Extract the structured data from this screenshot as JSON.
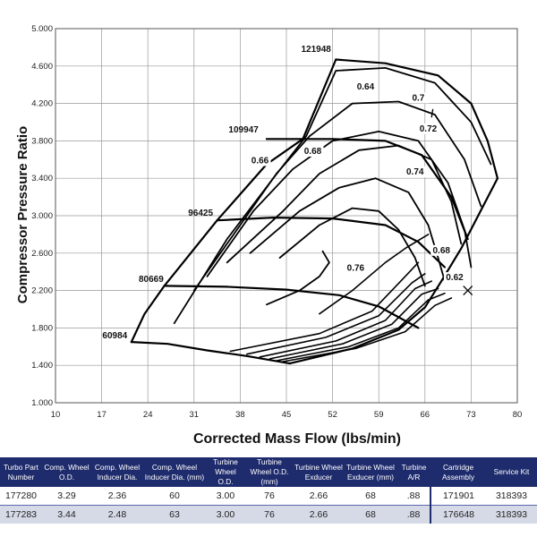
{
  "chart_data": {
    "type": "line",
    "title": "",
    "xlabel": "Corrected Mass Flow (lbs/min)",
    "ylabel": "Compressor Pressure Ratio",
    "xlim": [
      10,
      80
    ],
    "ylim": [
      1.0,
      5.0
    ],
    "x_ticks": [
      "10",
      "17",
      "24",
      "31",
      "38",
      "45",
      "52",
      "59",
      "66",
      "73",
      "80"
    ],
    "y_ticks": [
      "1.000",
      "1.400",
      "1.800",
      "2.200",
      "2.600",
      "3.000",
      "3.400",
      "3.800",
      "4.200",
      "4.600",
      "5.000"
    ],
    "grid": true,
    "surge_line": [
      [
        21.5,
        1.65
      ],
      [
        23.5,
        1.95
      ],
      [
        26.5,
        2.25
      ],
      [
        34.5,
        2.95
      ],
      [
        42,
        3.55
      ],
      [
        47.5,
        3.82
      ],
      [
        52.5,
        4.67
      ]
    ],
    "speed_lines": [
      {
        "name": "60984",
        "points": [
          [
            21.5,
            1.65
          ],
          [
            27,
            1.63
          ],
          [
            33,
            1.56
          ],
          [
            39,
            1.5
          ],
          [
            45.5,
            1.42
          ]
        ]
      },
      {
        "name": "80669",
        "points": [
          [
            26.5,
            2.25
          ],
          [
            36,
            2.24
          ],
          [
            45,
            2.21
          ],
          [
            53,
            2.15
          ],
          [
            59,
            2.03
          ],
          [
            65,
            1.8
          ]
        ]
      },
      {
        "name": "96425",
        "points": [
          [
            34.5,
            2.95
          ],
          [
            43,
            2.98
          ],
          [
            52,
            2.97
          ],
          [
            60,
            2.9
          ],
          [
            65,
            2.72
          ],
          [
            69,
            2.45
          ]
        ]
      },
      {
        "name": "109947",
        "points": [
          [
            42,
            3.82
          ],
          [
            52,
            3.82
          ],
          [
            60,
            3.8
          ],
          [
            65.5,
            3.65
          ],
          [
            70,
            3.2
          ],
          [
            72.5,
            2.75
          ]
        ]
      },
      {
        "name": "121948",
        "points": [
          [
            52.5,
            4.67
          ],
          [
            60,
            4.63
          ],
          [
            68,
            4.5
          ],
          [
            73,
            4.2
          ],
          [
            75.5,
            3.8
          ],
          [
            77,
            3.4
          ]
        ]
      }
    ],
    "choke_line": [
      [
        77,
        3.4
      ],
      [
        71.5,
        2.65
      ],
      [
        68.5,
        2.3
      ],
      [
        66,
        2.02
      ],
      [
        62,
        1.78
      ],
      [
        55,
        1.58
      ],
      [
        45.5,
        1.42
      ]
    ],
    "efficiency_islands": [
      {
        "label": "0.64",
        "points": [
          [
            28,
            1.85
          ],
          [
            36,
            2.75
          ],
          [
            43,
            3.4
          ],
          [
            48,
            3.85
          ],
          [
            52.5,
            4.55
          ],
          [
            60,
            4.58
          ],
          [
            67.5,
            4.42
          ],
          [
            73,
            4.0
          ],
          [
            76,
            3.55
          ]
        ]
      },
      {
        "label": "0.66",
        "points": [
          [
            31,
            2.2
          ],
          [
            38,
            2.9
          ],
          [
            43.5,
            3.45
          ],
          [
            48.5,
            3.85
          ],
          [
            55,
            4.2
          ],
          [
            62,
            4.22
          ],
          [
            67.5,
            4.08
          ],
          [
            72,
            3.6
          ],
          [
            74.5,
            3.1
          ]
        ]
      },
      {
        "label": "0.68",
        "points": [
          [
            33,
            2.35
          ],
          [
            40,
            3.05
          ],
          [
            46,
            3.5
          ],
          [
            52,
            3.8
          ],
          [
            59,
            3.9
          ],
          [
            65,
            3.8
          ],
          [
            69.5,
            3.35
          ],
          [
            72,
            2.85
          ],
          [
            73,
            2.45
          ]
        ]
      },
      {
        "label": "0.7",
        "points": [
          [
            36,
            2.5
          ],
          [
            44.5,
            3.05
          ],
          [
            50,
            3.45
          ],
          [
            56,
            3.7
          ],
          [
            62,
            3.75
          ],
          [
            67,
            3.6
          ],
          [
            70,
            3.15
          ],
          [
            71.5,
            2.7
          ]
        ]
      },
      {
        "label": "0.72",
        "points": [
          [
            39.5,
            2.6
          ],
          [
            47,
            3.05
          ],
          [
            53,
            3.3
          ],
          [
            58.5,
            3.4
          ],
          [
            63.5,
            3.25
          ],
          [
            66.5,
            2.9
          ],
          [
            68,
            2.55
          ],
          [
            69,
            2.3
          ]
        ]
      },
      {
        "label": "0.74",
        "points": [
          [
            44,
            2.55
          ],
          [
            50,
            2.9
          ],
          [
            55,
            3.08
          ],
          [
            59,
            3.05
          ],
          [
            62,
            2.85
          ],
          [
            64.5,
            2.55
          ],
          [
            66,
            2.25
          ]
        ]
      },
      {
        "label": "0.76",
        "points": [
          [
            50.5,
            2.62
          ],
          [
            51.5,
            2.5
          ],
          [
            50,
            2.35
          ],
          [
            47,
            2.2
          ],
          [
            42,
            2.05
          ]
        ]
      }
    ],
    "choke_margin_lines": [
      [
        [
          36.5,
          1.55
        ],
        [
          50,
          1.74
        ],
        [
          58,
          1.98
        ],
        [
          63,
          2.35
        ],
        [
          65,
          2.5
        ]
      ],
      [
        [
          39,
          1.52
        ],
        [
          51,
          1.7
        ],
        [
          59,
          1.93
        ],
        [
          64,
          2.28
        ],
        [
          66,
          2.38
        ]
      ],
      [
        [
          41,
          1.49
        ],
        [
          52.5,
          1.66
        ],
        [
          60,
          1.88
        ],
        [
          64.5,
          2.22
        ],
        [
          67,
          2.3
        ]
      ],
      [
        [
          42.5,
          1.47
        ],
        [
          53.5,
          1.63
        ],
        [
          61,
          1.84
        ],
        [
          65.5,
          2.16
        ],
        [
          68,
          2.22
        ]
      ],
      [
        [
          43.5,
          1.45
        ],
        [
          54.5,
          1.6
        ],
        [
          62,
          1.8
        ],
        [
          66.5,
          2.1
        ],
        [
          69,
          2.17
        ]
      ],
      [
        [
          44.5,
          1.44
        ],
        [
          55.5,
          1.58
        ],
        [
          63,
          1.76
        ],
        [
          67.5,
          2.04
        ],
        [
          70,
          2.12
        ]
      ],
      [
        [
          50,
          1.95
        ],
        [
          55,
          2.2
        ],
        [
          60,
          2.5
        ],
        [
          63,
          2.65
        ],
        [
          66.5,
          2.8
        ]
      ]
    ],
    "efficiency_labels": [
      {
        "text": "0.64",
        "x": 57,
        "y": 4.35
      },
      {
        "text": "0.66",
        "x": 41,
        "y": 3.56
      },
      {
        "text": "0.68",
        "x": 49,
        "y": 3.66
      },
      {
        "text": "0.7",
        "x": 65,
        "y": 4.23
      },
      {
        "text": "0.72",
        "x": 66.5,
        "y": 3.9
      },
      {
        "text": "0.74",
        "x": 64.5,
        "y": 3.44
      },
      {
        "text": "0.76",
        "x": 55.5,
        "y": 2.41
      },
      {
        "text": "0.68",
        "x": 68.5,
        "y": 2.6
      },
      {
        "text": "0.62",
        "x": 70.5,
        "y": 2.31
      }
    ],
    "speed_labels": [
      {
        "text": "121948",
        "x": 49.5,
        "y": 4.75
      },
      {
        "text": "109947",
        "x": 38.5,
        "y": 3.89
      },
      {
        "text": "96425",
        "x": 32,
        "y": 3.0
      },
      {
        "text": "80669",
        "x": 24.5,
        "y": 2.29
      },
      {
        "text": "60984",
        "x": 19,
        "y": 1.69
      }
    ]
  },
  "table": {
    "headers": [
      "Turbo Part Number",
      "Comp. Wheel O.D.",
      "Comp. Wheel Inducer Dia.",
      "Comp. Wheel Inducer Dia. (mm)",
      "Turbine Wheel O.D.",
      "Turbine Wheel O.D. (mm)",
      "Turbine Wheel Exducer",
      "Turbine Wheel Exducer (mm)",
      "Turbine A/R",
      "Cartridge Assembly",
      "Service Kit"
    ],
    "rows": [
      [
        "177280",
        "3.29",
        "2.36",
        "60",
        "3.00",
        "76",
        "2.66",
        "68",
        ".88",
        "171901",
        "318393"
      ],
      [
        "177283",
        "3.44",
        "2.48",
        "63",
        "3.00",
        "76",
        "2.66",
        "68",
        ".88",
        "176648",
        "318393"
      ]
    ]
  },
  "colors": {
    "header_bg": "#1e2b6d",
    "row_alt": "#d6dae6",
    "grid": "#999999",
    "line": "#000000"
  }
}
